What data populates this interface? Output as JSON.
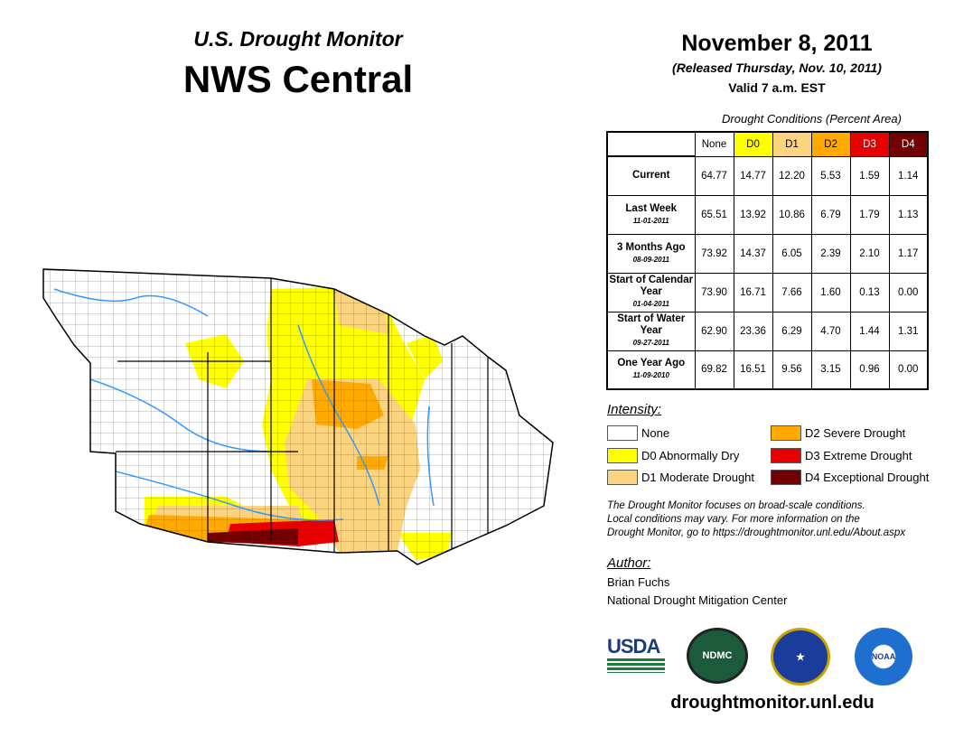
{
  "header": {
    "subtitle": "U.S. Drought Monitor",
    "title": "NWS Central",
    "date": "November 8, 2011",
    "released": "(Released Thursday, Nov. 10, 2011)",
    "valid": "Valid 7 a.m. EST"
  },
  "table": {
    "caption": "Drought Conditions (Percent Area)",
    "columns": [
      {
        "label": "None",
        "color": "#ffffff"
      },
      {
        "label": "D0",
        "color": "#ffff00"
      },
      {
        "label": "D1",
        "color": "#fcd37f"
      },
      {
        "label": "D2",
        "color": "#ffaa00"
      },
      {
        "label": "D3",
        "color": "#e60000"
      },
      {
        "label": "D4",
        "color": "#730000"
      }
    ],
    "rows": [
      {
        "label": "Current",
        "date": "",
        "values": [
          "64.77",
          "14.77",
          "12.20",
          "5.53",
          "1.59",
          "1.14"
        ]
      },
      {
        "label": "Last Week",
        "date": "11-01-2011",
        "values": [
          "65.51",
          "13.92",
          "10.86",
          "6.79",
          "1.79",
          "1.13"
        ]
      },
      {
        "label": "3 Months Ago",
        "date": "08-09-2011",
        "values": [
          "73.92",
          "14.37",
          "6.05",
          "2.39",
          "2.10",
          "1.17"
        ]
      },
      {
        "label": "Start of Calendar Year",
        "date": "01-04-2011",
        "values": [
          "73.90",
          "16.71",
          "7.66",
          "1.60",
          "0.13",
          "0.00"
        ]
      },
      {
        "label": "Start of Water Year",
        "date": "09-27-2011",
        "values": [
          "62.90",
          "23.36",
          "6.29",
          "4.70",
          "1.44",
          "1.31"
        ]
      },
      {
        "label": "One Year Ago",
        "date": "11-09-2010",
        "values": [
          "69.82",
          "16.51",
          "9.56",
          "3.15",
          "0.96",
          "0.00"
        ]
      }
    ]
  },
  "legend": {
    "title": "Intensity:",
    "items": [
      {
        "label": "None",
        "color": "#ffffff"
      },
      {
        "label": "D0 Abnormally Dry",
        "color": "#ffff00"
      },
      {
        "label": "D1 Moderate Drought",
        "color": "#fcd37f"
      },
      {
        "label": "D2 Severe Drought",
        "color": "#ffaa00"
      },
      {
        "label": "D3 Extreme Drought",
        "color": "#e60000"
      },
      {
        "label": "D4 Exceptional Drought",
        "color": "#730000"
      }
    ]
  },
  "note": [
    "The Drought Monitor focuses on broad-scale conditions.",
    "Local conditions may vary. For more information on the",
    "Drought Monitor, go to https://droughtmonitor.unl.edu/About.aspx"
  ],
  "author": {
    "title": "Author:",
    "name": "Brian Fuchs",
    "org": "National Drought Mitigation Center"
  },
  "logos": [
    "USDA",
    "NDMC",
    "NOAA"
  ],
  "footer_url": "droughtmonitor.unl.edu"
}
